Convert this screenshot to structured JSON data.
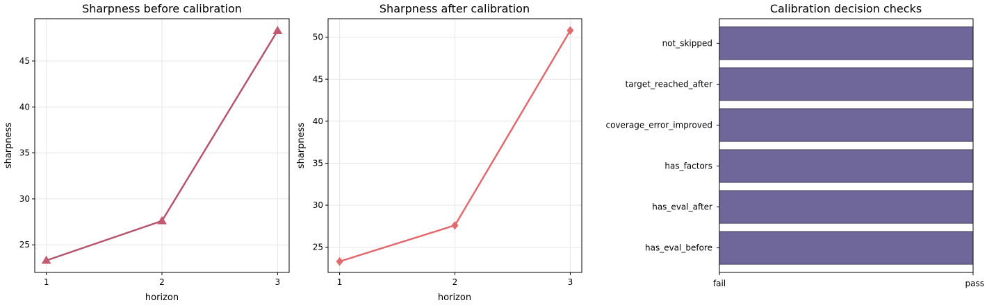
{
  "colors": {
    "before_line": "#b5566e",
    "before_marker": "#c15b72",
    "after_line": "#e06a6d",
    "bar_fill": "#6f6799",
    "bar_edge": "#2d2a40",
    "grid": "#e6e6e6"
  },
  "chart_data": [
    {
      "type": "line",
      "title": "Sharpness before calibration",
      "xlabel": "horizon",
      "ylabel": "sharpness",
      "marker": "triangle",
      "x": [
        1,
        2,
        3
      ],
      "y": [
        23.3,
        27.6,
        48.3
      ],
      "xlim": [
        0.9,
        3.1
      ],
      "ylim": [
        22.0,
        49.6
      ],
      "xticks": [
        1,
        2,
        3
      ],
      "yticks": [
        25,
        30,
        35,
        40,
        45
      ],
      "grid": true
    },
    {
      "type": "line",
      "title": "Sharpness after calibration",
      "xlabel": "horizon",
      "ylabel": "sharpness",
      "marker": "diamond",
      "x": [
        1,
        2,
        3
      ],
      "y": [
        23.3,
        27.6,
        50.8
      ],
      "xlim": [
        0.9,
        3.1
      ],
      "ylim": [
        22.0,
        52.2
      ],
      "xticks": [
        1,
        2,
        3
      ],
      "yticks": [
        25,
        30,
        35,
        40,
        45,
        50
      ],
      "grid": true
    },
    {
      "type": "bar",
      "orientation": "horizontal",
      "title": "Calibration decision checks",
      "categories": [
        "has_eval_before",
        "has_eval_after",
        "has_factors",
        "coverage_error_improved",
        "target_reached_after",
        "not_skipped"
      ],
      "values": [
        1,
        1,
        1,
        1,
        1,
        1
      ],
      "xlim": [
        0,
        1
      ],
      "xtick_labels": [
        "fail",
        "pass"
      ]
    }
  ]
}
